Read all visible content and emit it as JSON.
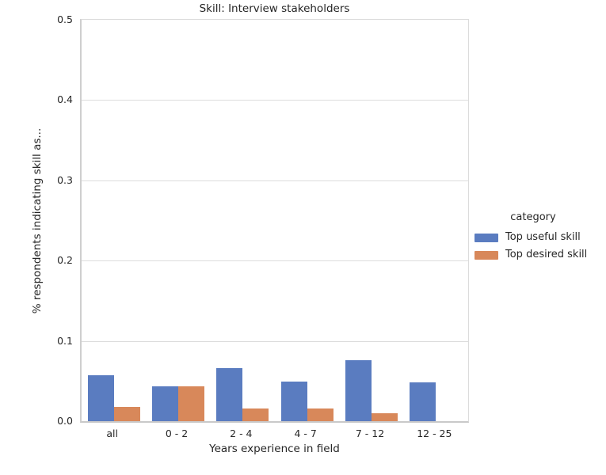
{
  "figure": {
    "colors": {
      "grid": "#dcdcdc",
      "axis_line": "#c9c9c9",
      "text": "#262626",
      "background": "#ffffff"
    }
  },
  "legend": {
    "title": "category",
    "entries": [
      {
        "label": "Top useful skill",
        "color": "#5a7cc0"
      },
      {
        "label": "Top desired skill",
        "color": "#d8885a"
      }
    ]
  },
  "chart_data": {
    "type": "bar",
    "title": "Skill: Interview stakeholders",
    "xlabel": "Years experience in field",
    "ylabel": "% respondents indicating skill as...",
    "categories": [
      "all",
      "0 - 2",
      "2 - 4",
      "4 - 7",
      "7 - 12",
      "12 - 25"
    ],
    "series": [
      {
        "name": "Top useful skill",
        "color": "#5a7cc0",
        "values": [
          0.057,
          0.043,
          0.066,
          0.049,
          0.076,
          0.048
        ]
      },
      {
        "name": "Top desired skill",
        "color": "#d8885a",
        "values": [
          0.018,
          0.043,
          0.016,
          0.016,
          0.01,
          0.0
        ]
      }
    ],
    "ylim": [
      0,
      0.5
    ],
    "yticks": [
      "0.0",
      "0.1",
      "0.2",
      "0.3",
      "0.4",
      "0.5"
    ],
    "grid": true,
    "legend_position": "center right"
  }
}
